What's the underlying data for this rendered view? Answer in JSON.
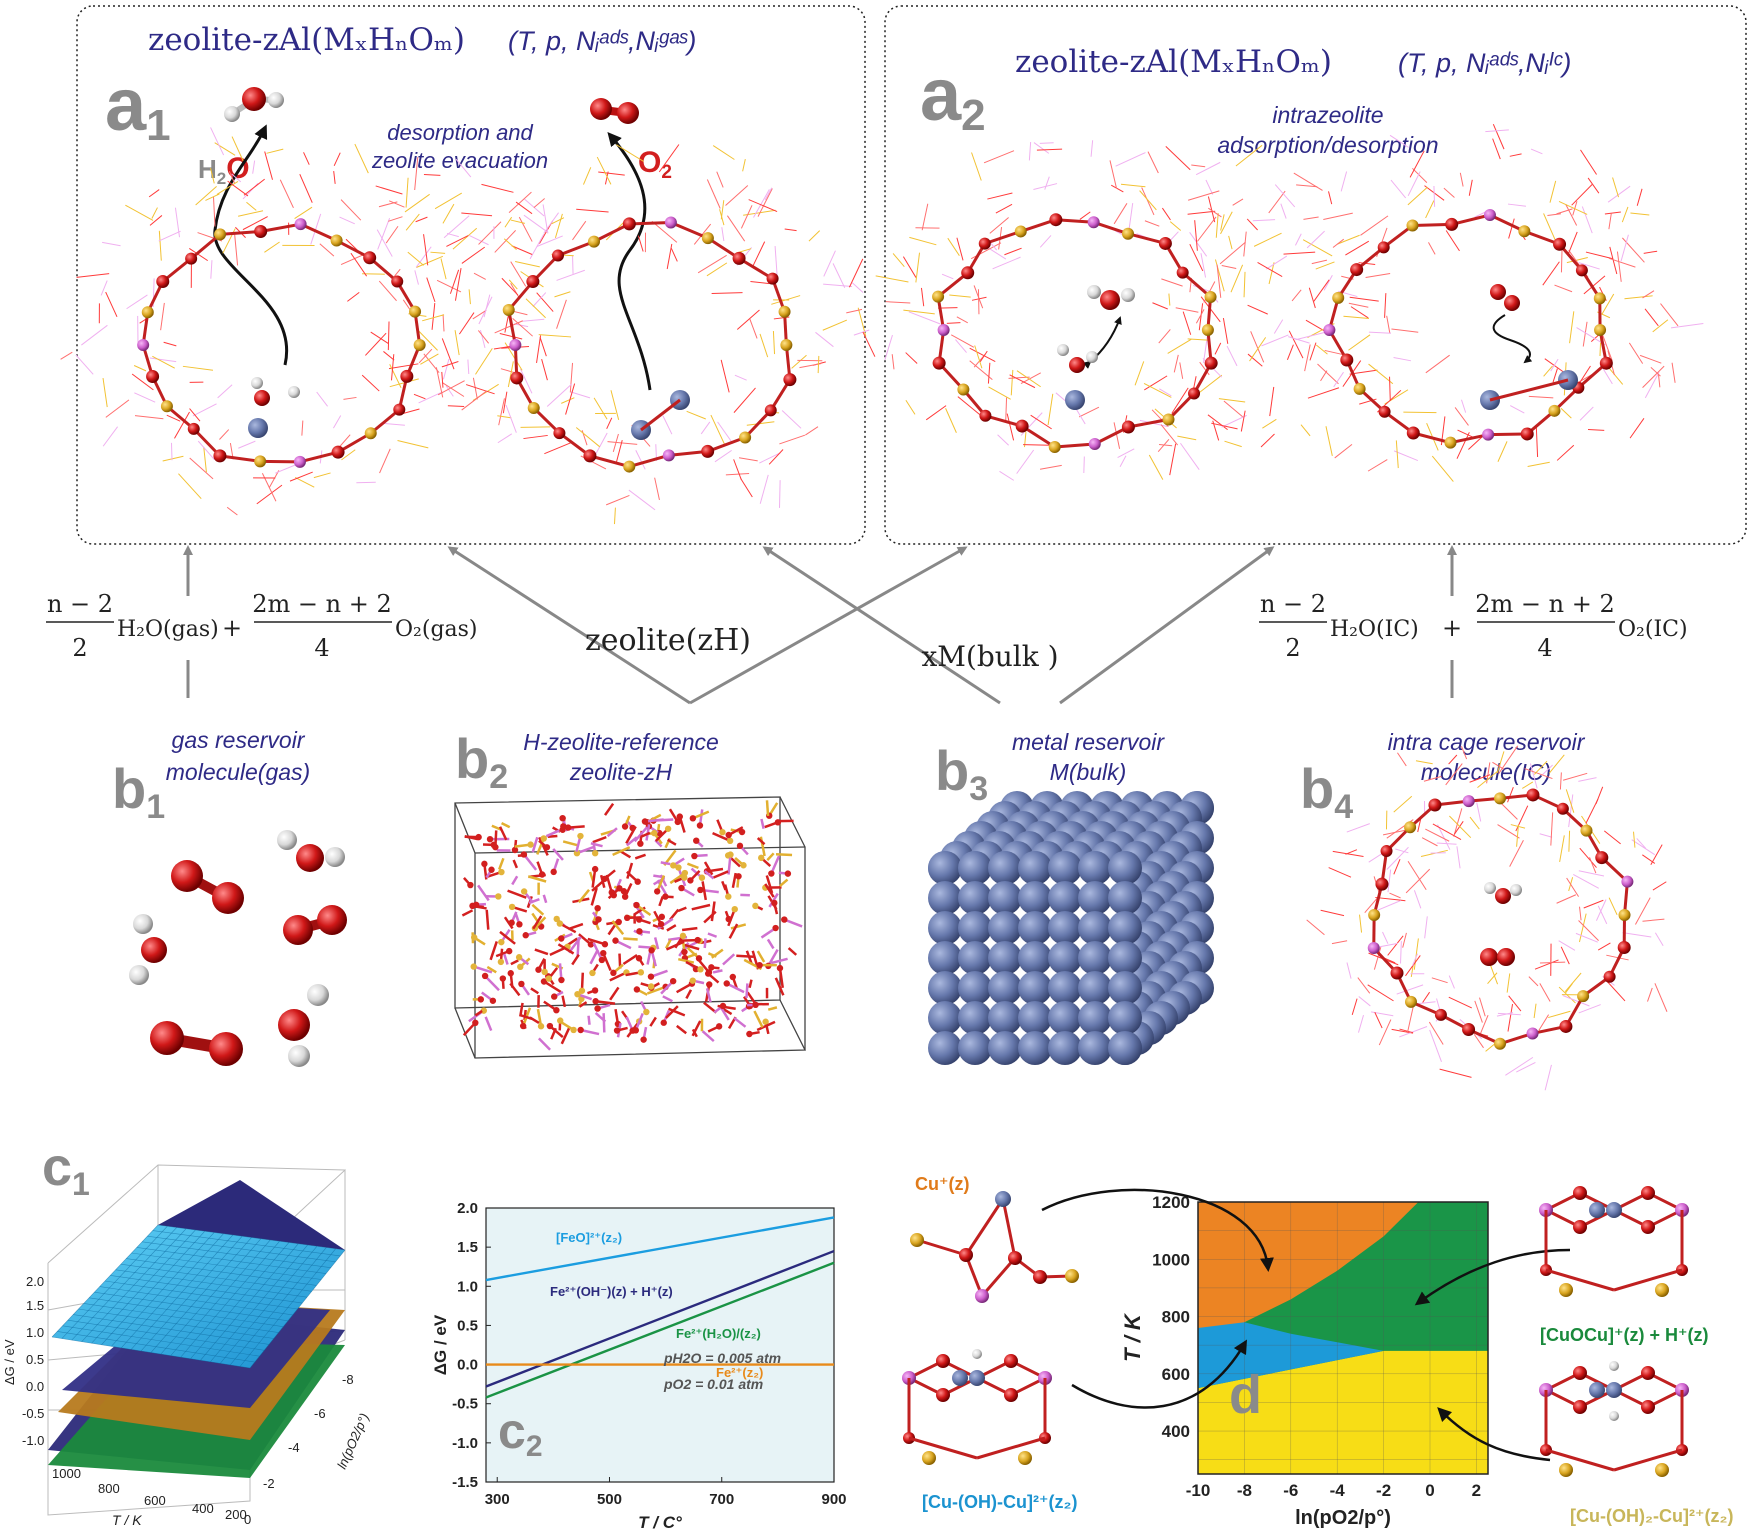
{
  "colors": {
    "panel_title": "#2e2a86",
    "label_gray": "#8a8a8a",
    "o_red": "#d21f1f",
    "cu_orange": "#e07b1a",
    "cu_blue": "#1b93d0",
    "cu_green": "#1a8a3c",
    "cu_yellow": "#c8b65a",
    "plot_bg": "#e7f3f6"
  },
  "panel_a1": {
    "label_main": "a",
    "label_sub": "1",
    "title_formula": "zeolite-zAl(MₓHₙOₘ)",
    "title_vars": "(T, p, Nᵢᵃᵈˢ,Nᵢᵍᵃˢ)",
    "caption_line1": "desorption and",
    "caption_line2": "zeolite evacuation",
    "h2o_h": "H",
    "h2o_2": "2",
    "h2o_o": "O",
    "o2_o": "O",
    "o2_2": "2"
  },
  "panel_a2": {
    "label_main": "a",
    "label_sub": "2",
    "title_formula": "zeolite-zAl(MₓHₙOₘ)",
    "title_vars": "(T, p, Nᵢᵃᵈˢ,Nᵢᴵᶜ)",
    "caption_line1": "intrazeolite",
    "caption_line2": "adsorption/desorption"
  },
  "equations": {
    "left_frac1_num": "n − 2",
    "left_frac1_den": "2",
    "left_h2o": "H₂O(gas)",
    "plus": "+",
    "left_frac2_num": "2m − n + 2",
    "left_frac2_den": "4",
    "left_o2": "O₂(gas)",
    "zeolite": "zeolite(zH)",
    "xm": "xM(bulk )",
    "right_frac1_num": "n − 2",
    "right_frac1_den": "2",
    "right_h2o": "H₂O(IC)",
    "right_frac2_num": "2m − n + 2",
    "right_frac2_den": "4",
    "right_o2": "O₂(IC)"
  },
  "panel_b": {
    "b1": {
      "label_main": "b",
      "label_sub": "1",
      "line1": "gas reservoir",
      "line2": "molecule(gas)"
    },
    "b2": {
      "label_main": "b",
      "label_sub": "2",
      "line1": "H-zeolite-reference",
      "line2": "zeolite-zH"
    },
    "b3": {
      "label_main": "b",
      "label_sub": "3",
      "line1": "metal reservoir",
      "line2": "M(bulk)"
    },
    "b4": {
      "label_main": "b",
      "label_sub": "4",
      "line1": "intra cage reservoir",
      "line2": "molecule(IC)"
    }
  },
  "panel_c1": {
    "label_main": "c",
    "label_sub": "1",
    "zlabel": "ΔG / eV",
    "xlabel": "T / K",
    "ylabel": "ln(pO2/p°)",
    "z_ticks": [
      "2.0",
      "1.5",
      "1.0",
      "0.5",
      "0.0",
      "-0.5",
      "-1.0"
    ],
    "t_ticks": [
      "1000",
      "800",
      "600",
      "400",
      "200",
      "0"
    ],
    "p_ticks": [
      "-8",
      "-6",
      "-4",
      "-2"
    ]
  },
  "panel_c2": {
    "label_main": "c",
    "label_sub": "2",
    "annotation1": "pH2O = 0.005 atm",
    "annotation2": "pO2 = 0.01 atm"
  },
  "panel_d": {
    "label": "d",
    "cu_z": "Cu⁺(z)",
    "cuocu": "[CuOCu]⁺(z) + H⁺(z)",
    "cuohcu": "[Cu-(OH)-Cu]²⁺(z₂)",
    "cuoh2cu": "[Cu-(OH)₂-Cu]²⁺(z₂)"
  },
  "chart_data": [
    {
      "type": "line",
      "title": "",
      "xlabel": "T / C°",
      "ylabel": "ΔG / eV",
      "xlim": [
        280,
        900
      ],
      "ylim": [
        -1.5,
        2.0
      ],
      "x_ticks": [
        300,
        500,
        700,
        900
      ],
      "y_ticks": [
        -1.5,
        -1.0,
        -0.5,
        0.0,
        0.5,
        1.0,
        1.5,
        2.0
      ],
      "series": [
        {
          "name": "[FeO]²⁺(z₂)",
          "color": "#1b9de0",
          "x": [
            280,
            900
          ],
          "y": [
            1.08,
            1.88
          ]
        },
        {
          "name": "Fe²⁺(OH⁻)(z) + H⁺(z)",
          "color": "#2b2a7d",
          "x": [
            280,
            900
          ],
          "y": [
            -0.28,
            1.45
          ]
        },
        {
          "name": "Fe²⁺(H₂O)/(z₂)",
          "color": "#1a9345",
          "x": [
            280,
            900
          ],
          "y": [
            -0.42,
            1.3
          ]
        },
        {
          "name": "Fe²⁺(z₂)",
          "color": "#e88a1a",
          "x": [
            280,
            900
          ],
          "y": [
            0.0,
            0.0
          ]
        }
      ]
    },
    {
      "type": "heatmap",
      "title": "",
      "xlabel": "ln(pO2/p°)",
      "ylabel": "T / K",
      "xlim": [
        -10,
        2.5
      ],
      "ylim": [
        250,
        1200
      ],
      "x_ticks": [
        -10,
        -8,
        -6,
        -4,
        -2,
        0,
        2
      ],
      "y_ticks": [
        400,
        600,
        800,
        1000,
        1200
      ],
      "regions": [
        {
          "name": "Cu⁺(z)",
          "color": "#ec8423"
        },
        {
          "name": "[CuOCu]⁺(z) + H⁺(z)",
          "color": "#1a9548"
        },
        {
          "name": "[Cu-(OH)-Cu]²⁺(z₂)",
          "color": "#1d9ad8"
        },
        {
          "name": "[Cu-(OH)₂-Cu]²⁺(z₂)",
          "color": "#f7dd16"
        }
      ],
      "boundaries": {
        "cu_vs_cuocu": {
          "x": [
            -10,
            -8,
            -6,
            -4,
            -2,
            -0.5
          ],
          "y": [
            700,
            780,
            860,
            960,
            1080,
            1200
          ]
        },
        "cuohcu_top": {
          "x": [
            -10,
            -8,
            -6,
            -4,
            -2,
            2.5
          ],
          "y": [
            760,
            780,
            740,
            710,
            680,
            680
          ]
        },
        "cuohcu_bottom": {
          "x": [
            -10,
            -2
          ],
          "y": [
            550,
            680
          ]
        },
        "yellow_top": {
          "x": [
            -2,
            2.5
          ],
          "y": [
            680,
            680
          ]
        }
      }
    }
  ]
}
